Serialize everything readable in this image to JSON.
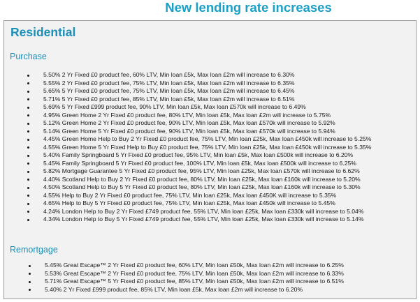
{
  "header": {
    "title": "New lending rate increases"
  },
  "residential": {
    "title": "Residential",
    "purchase": {
      "title": "Purchase",
      "items": [
        "5.50% 2 Yr Fixed £0 product fee, 60% LTV, Min loan £5k, Max loan £2m will increase to 6.30%",
        "5.55% 2 Yr Fixed £0 product fee, 75% LTV, Min loan £5k, Max loan £2m will increase to 6.35%",
        "5.65% 5 Yr Fixed £0 product fee, 75% LTV, Min loan £5k, Max loan £2m will increase to 6.45%",
        "5.71% 5 Yr Fixed £0 product fee, 85% LTV, Min loan £5k, Max loan £2m will increase to 6.51%",
        "5.69% 5 Yr Fixed £999 product fee, 90% LTV, Min loan £5k, Max loan £570k will increase to 6.49%",
        "4.95% Green Home 2 Yr Fixed £0 product fee, 80% LTV, Min loan £5k, Max loan £2m will increase to 5.75%",
        "5.12% Green Home 2 Yr Fixed £0 product fee, 90% LTV, Min loan £5k, Max loan £570k will increase to 5.92%",
        "5.14% Green Home 5 Yr Fixed £0 product fee, 90% LTV, Min loan £5k, Max loan £570k will increase to 5.94%",
        "4.45% Green Home Help to Buy 2 Yr Fixed £0 product fee, 75% LTV, Min loan £25k, Max loan £450k will increase to 5.25%",
        "4.55% Green Home 5 Yr Fixed Help to Buy £0 product fee, 75% LTV, Min loan £25k, Max loan £450k will increase to 5.35%",
        "5.40% Family Springboard 5 Yr Fixed £0 product fee, 95% LTV, Min loan £5k, Max loan £500k will increase to 6.20%",
        "5.45% Family Springboard 5 Yr Fixed £0 product fee, 100% LTV, Min loan £5k, Max loan £500k will increase to 6.25%",
        "5.82% Mortgage Guarantee 5 Yr Fixed £0 product fee, 95% LTV, Min loan £25k, Max loan £570k will increase to 6.62%",
        "4.40% Scotland Help to Buy 2 Yr Fixed £0 product fee, 80% LTV, Min loan £25k, Max loan £160k will increase to 5.20%",
        "4.50% Scotland Help to Buy 5 Yr Fixed £0 product fee, 80% LTV, Min loan £25k, Max loan £160k will increase to 5.30%",
        "4.55% Help to Buy 2 Yr Fixed £0 product fee, 75% LTV, Min loan £25k, Max loan £450K will increase to 5.35%",
        "4.65% Help to Buy 5 Yr Fixed £0 product fee, 75% LTV, Min loan £25k, Max loan £450k will increase to 5.45%",
        "4.24% London Help to Buy 2 Yr Fixed £749 product fee, 55% LTV, Min loan £25k, Max loan £330k will increase to 5.04%",
        "4.34% London Help to Buy 5 Yr Fixed £749 product fee, 55% LTV, Min loan £25k, Max loan £330k will increase to 5.14%"
      ]
    },
    "remortgage": {
      "title": "Remortgage",
      "items": [
        "5.45% Great Escape™ 2 Yr Fixed £0 product fee, 60% LTV, Min loan £50k, Max loan £2m will increase to 6.25%",
        "5.53% Great Escape™ 2 Yr Fixed £0 product fee, 75% LTV, Min loan £50k, Max loan £2m will increase to 6.33%",
        "5.71% Great Escape™ 5 Yr Fixed £0 product fee, 85% LTV, Min loan £50k, Max loan £2m will increase to 6.51%",
        "5.40% 2 Yr Fixed £999 product fee, 85% LTV, Min loan £5k, Max loan £2m will increase to 6.20%"
      ]
    }
  },
  "colors": {
    "heading": "#1aa0c8",
    "section": "#1a8fb8",
    "panel_bg": "#f2f2f2",
    "panel_border": "#9a9a9a",
    "text": "#1a1a1a"
  }
}
